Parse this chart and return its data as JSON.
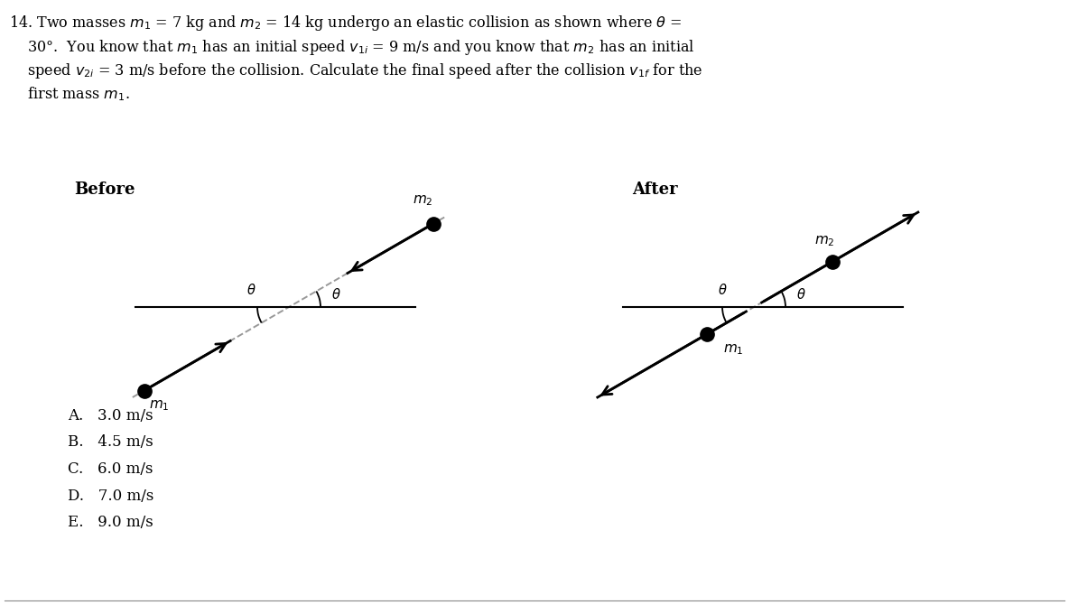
{
  "before_label": "Before",
  "after_label": "After",
  "choices": [
    "A.   3.0 m/s",
    "B.   4.5 m/s",
    "C.   6.0 m/s",
    "D.   7.0 m/s",
    "E.   9.0 m/s"
  ],
  "bg_color": "#ffffff",
  "text_color": "#000000",
  "line_color": "#000000",
  "dot_color": "#000000",
  "arrow_color": "#000000",
  "dashed_color": "#999999",
  "theta_deg": 30,
  "title_lines": [
    "14. Two masses $m_1$ = 7 kg and $m_2$ = 14 kg undergo an elastic collision as shown where $\\theta$ =",
    "    30°.  You know that $m_1$ has an initial speed $v_{1i}$ = 9 m/s and you know that $m_2$ has an initial",
    "    speed $v_{2i}$ = 3 m/s before the collision. Calculate the final speed after the collision $v_{1f}$ for the",
    "    first mass $m_1$."
  ]
}
